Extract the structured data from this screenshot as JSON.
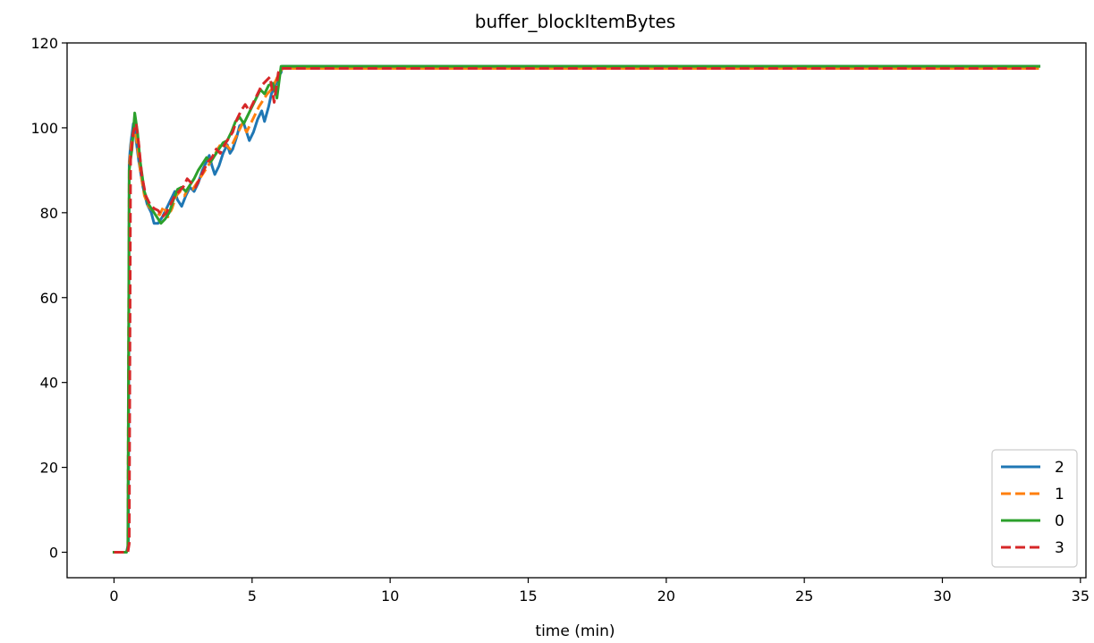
{
  "chart_data": {
    "type": "line",
    "title": "buffer_blockItemBytes",
    "xlabel": "time (min)",
    "ylabel": "",
    "xlim": [
      -1.7,
      35.2
    ],
    "ylim": [
      -6,
      120
    ],
    "xticks": [
      0,
      5,
      10,
      15,
      20,
      25,
      30,
      35
    ],
    "yticks": [
      0,
      20,
      40,
      60,
      80,
      100,
      120
    ],
    "grid": false,
    "legend_position": "lower-right",
    "series": [
      {
        "name": "2",
        "color": "#1f77b4",
        "dash": "solid",
        "points": [
          [
            0,
            0
          ],
          [
            0.45,
            0
          ],
          [
            0.52,
            2
          ],
          [
            0.55,
            92
          ],
          [
            0.6,
            96
          ],
          [
            0.7,
            101
          ],
          [
            0.78,
            98
          ],
          [
            0.9,
            92
          ],
          [
            1.05,
            86
          ],
          [
            1.2,
            82
          ],
          [
            1.35,
            80
          ],
          [
            1.45,
            77.5
          ],
          [
            1.6,
            77.5
          ],
          [
            1.75,
            79
          ],
          [
            1.9,
            81
          ],
          [
            2.05,
            83
          ],
          [
            2.2,
            85
          ],
          [
            2.3,
            83
          ],
          [
            2.45,
            81.5
          ],
          [
            2.6,
            84
          ],
          [
            2.75,
            86
          ],
          [
            2.9,
            85
          ],
          [
            3.05,
            87
          ],
          [
            3.2,
            90
          ],
          [
            3.35,
            92
          ],
          [
            3.45,
            93.5
          ],
          [
            3.55,
            91
          ],
          [
            3.65,
            89
          ],
          [
            3.8,
            91
          ],
          [
            3.95,
            94
          ],
          [
            4.1,
            96
          ],
          [
            4.2,
            94
          ],
          [
            4.3,
            95
          ],
          [
            4.45,
            98
          ],
          [
            4.55,
            100.5
          ],
          [
            4.7,
            101
          ],
          [
            4.8,
            99
          ],
          [
            4.9,
            97
          ],
          [
            5.05,
            99
          ],
          [
            5.2,
            102
          ],
          [
            5.35,
            104
          ],
          [
            5.45,
            101.5
          ],
          [
            5.6,
            105
          ],
          [
            5.7,
            108
          ],
          [
            5.85,
            110
          ],
          [
            5.95,
            112
          ],
          [
            6.05,
            113
          ],
          [
            6.1,
            114.5
          ],
          [
            33.5,
            114.5
          ]
        ]
      },
      {
        "name": "1",
        "color": "#ff7f0e",
        "dash": "dashed",
        "points": [
          [
            0,
            0
          ],
          [
            0.45,
            0
          ],
          [
            0.5,
            1
          ],
          [
            0.55,
            91
          ],
          [
            0.62,
            96
          ],
          [
            0.72,
            100
          ],
          [
            0.82,
            97
          ],
          [
            0.95,
            90
          ],
          [
            1.1,
            84
          ],
          [
            1.25,
            81.5
          ],
          [
            1.4,
            80.5
          ],
          [
            1.55,
            80
          ],
          [
            1.65,
            79.5
          ],
          [
            1.8,
            81.5
          ],
          [
            1.95,
            79
          ],
          [
            2.1,
            81
          ],
          [
            2.25,
            84
          ],
          [
            2.4,
            85
          ],
          [
            2.55,
            84
          ],
          [
            2.7,
            86
          ],
          [
            2.85,
            85.5
          ],
          [
            3.0,
            87
          ],
          [
            3.2,
            89
          ],
          [
            3.4,
            91
          ],
          [
            3.6,
            93
          ],
          [
            3.75,
            95
          ],
          [
            3.9,
            96.5
          ],
          [
            4.05,
            96
          ],
          [
            4.2,
            95
          ],
          [
            4.35,
            97
          ],
          [
            4.5,
            99
          ],
          [
            4.65,
            101
          ],
          [
            4.8,
            99
          ],
          [
            4.95,
            101
          ],
          [
            5.1,
            103
          ],
          [
            5.25,
            105
          ],
          [
            5.4,
            106.5
          ],
          [
            5.55,
            108
          ],
          [
            5.7,
            109
          ],
          [
            5.85,
            111
          ],
          [
            5.95,
            112.5
          ],
          [
            6.05,
            113.5
          ],
          [
            6.1,
            114
          ],
          [
            33.5,
            114
          ]
        ]
      },
      {
        "name": "0",
        "color": "#2ca02c",
        "dash": "solid",
        "points": [
          [
            0,
            0
          ],
          [
            0.45,
            0
          ],
          [
            0.5,
            1
          ],
          [
            0.55,
            90
          ],
          [
            0.65,
            95
          ],
          [
            0.75,
            103.5
          ],
          [
            0.85,
            99
          ],
          [
            0.95,
            92
          ],
          [
            1.1,
            85
          ],
          [
            1.25,
            82
          ],
          [
            1.4,
            80.5
          ],
          [
            1.55,
            79
          ],
          [
            1.7,
            77.5
          ],
          [
            1.85,
            78.5
          ],
          [
            2.0,
            80
          ],
          [
            2.15,
            83
          ],
          [
            2.3,
            85.5
          ],
          [
            2.45,
            86
          ],
          [
            2.6,
            85
          ],
          [
            2.75,
            86.5
          ],
          [
            2.9,
            88
          ],
          [
            3.05,
            90
          ],
          [
            3.2,
            91.5
          ],
          [
            3.35,
            93
          ],
          [
            3.5,
            92
          ],
          [
            3.65,
            93.5
          ],
          [
            3.8,
            95
          ],
          [
            3.95,
            96.5
          ],
          [
            4.1,
            97
          ],
          [
            4.25,
            99
          ],
          [
            4.4,
            101.5
          ],
          [
            4.55,
            102.5
          ],
          [
            4.7,
            101
          ],
          [
            4.85,
            103
          ],
          [
            5.0,
            105
          ],
          [
            5.15,
            107
          ],
          [
            5.3,
            109
          ],
          [
            5.45,
            108
          ],
          [
            5.6,
            110
          ],
          [
            5.75,
            110.5
          ],
          [
            5.9,
            107
          ],
          [
            6.05,
            114.5
          ],
          [
            33.5,
            114.5
          ]
        ]
      },
      {
        "name": "3",
        "color": "#d62728",
        "dash": "dashed",
        "points": [
          [
            0,
            0
          ],
          [
            0.5,
            0
          ],
          [
            0.55,
            2
          ],
          [
            0.6,
            93
          ],
          [
            0.7,
            99
          ],
          [
            0.8,
            101
          ],
          [
            0.9,
            96
          ],
          [
            1.0,
            89
          ],
          [
            1.15,
            84
          ],
          [
            1.3,
            82
          ],
          [
            1.45,
            81
          ],
          [
            1.6,
            80.5
          ],
          [
            1.75,
            79
          ],
          [
            1.9,
            80
          ],
          [
            2.05,
            82
          ],
          [
            2.2,
            84
          ],
          [
            2.35,
            85
          ],
          [
            2.5,
            86
          ],
          [
            2.65,
            88
          ],
          [
            2.8,
            87
          ],
          [
            2.95,
            86
          ],
          [
            3.1,
            88
          ],
          [
            3.25,
            90
          ],
          [
            3.4,
            92
          ],
          [
            3.55,
            93
          ],
          [
            3.7,
            95
          ],
          [
            3.85,
            94
          ],
          [
            4.0,
            96
          ],
          [
            4.15,
            97.5
          ],
          [
            4.3,
            99
          ],
          [
            4.45,
            102
          ],
          [
            4.6,
            104
          ],
          [
            4.75,
            105.5
          ],
          [
            4.9,
            104
          ],
          [
            5.05,
            106
          ],
          [
            5.2,
            108
          ],
          [
            5.35,
            110
          ],
          [
            5.5,
            111
          ],
          [
            5.65,
            112
          ],
          [
            5.8,
            106
          ],
          [
            5.95,
            113
          ],
          [
            6.05,
            114
          ],
          [
            33.5,
            114
          ]
        ]
      }
    ]
  }
}
